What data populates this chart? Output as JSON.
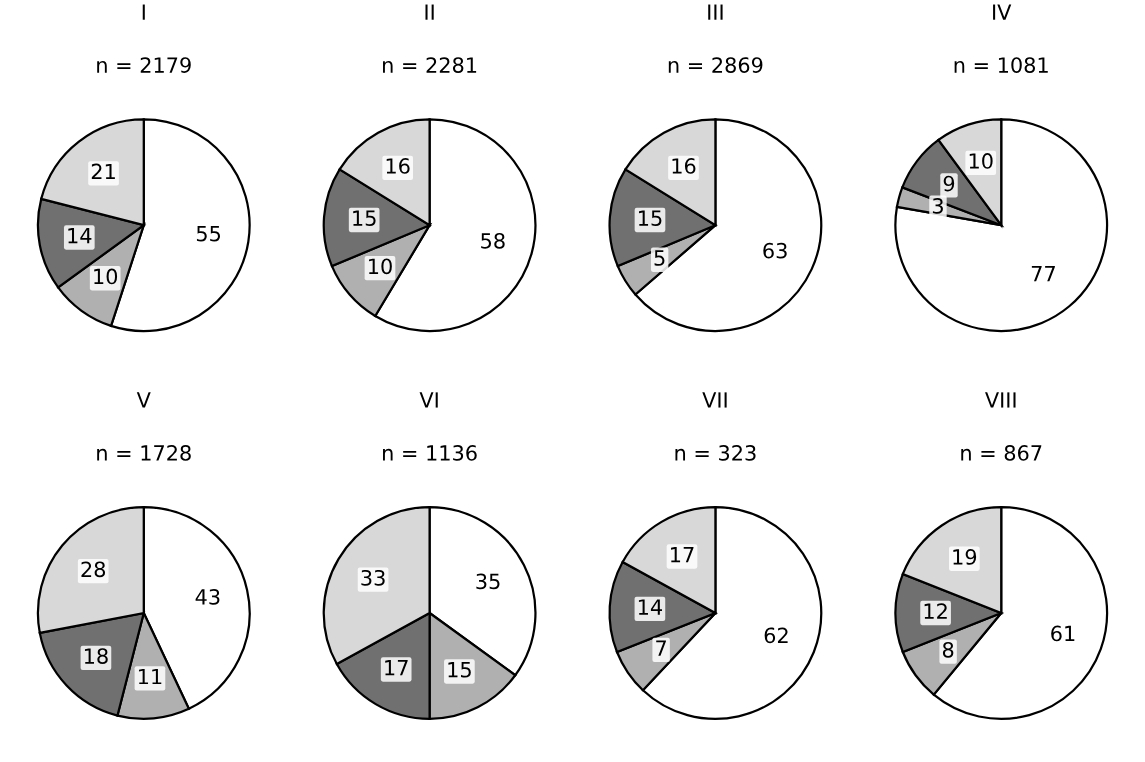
{
  "chart_data": [
    {
      "type": "pie",
      "title": "I",
      "subtitle": "n = 2179",
      "categories": [
        null,
        null,
        null,
        null
      ],
      "values": [
        55,
        10,
        14,
        21
      ],
      "colors": [
        "#ffffff",
        "#b0b0b0",
        "#707070",
        "#d8d8d8"
      ],
      "data_labels": true
    },
    {
      "type": "pie",
      "title": "II",
      "subtitle": "n = 2281",
      "categories": [
        null,
        null,
        null,
        null
      ],
      "values": [
        58,
        10,
        15,
        16
      ],
      "colors": [
        "#ffffff",
        "#b0b0b0",
        "#707070",
        "#d8d8d8"
      ],
      "data_labels": true
    },
    {
      "type": "pie",
      "title": "III",
      "subtitle": "n = 2869",
      "categories": [
        null,
        null,
        null,
        null
      ],
      "values": [
        63,
        5,
        15,
        16
      ],
      "colors": [
        "#ffffff",
        "#b0b0b0",
        "#707070",
        "#d8d8d8"
      ],
      "data_labels": true
    },
    {
      "type": "pie",
      "title": "IV",
      "subtitle": "n = 1081",
      "categories": [
        null,
        null,
        null,
        null
      ],
      "values": [
        77,
        3,
        9,
        10
      ],
      "colors": [
        "#ffffff",
        "#b0b0b0",
        "#707070",
        "#d8d8d8"
      ],
      "data_labels": true
    },
    {
      "type": "pie",
      "title": "V",
      "subtitle": "n = 1728",
      "categories": [
        null,
        null,
        null,
        null
      ],
      "values": [
        43,
        11,
        18,
        28
      ],
      "colors": [
        "#ffffff",
        "#b0b0b0",
        "#707070",
        "#d8d8d8"
      ],
      "data_labels": true
    },
    {
      "type": "pie",
      "title": "VI",
      "subtitle": "n = 1136",
      "categories": [
        null,
        null,
        null,
        null
      ],
      "values": [
        35,
        15,
        17,
        33
      ],
      "colors": [
        "#ffffff",
        "#b0b0b0",
        "#707070",
        "#d8d8d8"
      ],
      "data_labels": true
    },
    {
      "type": "pie",
      "title": "VII",
      "subtitle": "n = 323",
      "categories": [
        null,
        null,
        null,
        null
      ],
      "values": [
        62,
        7,
        14,
        17
      ],
      "colors": [
        "#ffffff",
        "#b0b0b0",
        "#707070",
        "#d8d8d8"
      ],
      "data_labels": true
    },
    {
      "type": "pie",
      "title": "VIII",
      "subtitle": "n = 867",
      "categories": [
        null,
        null,
        null,
        null
      ],
      "values": [
        61,
        8,
        12,
        19
      ],
      "colors": [
        "#ffffff",
        "#b0b0b0",
        "#707070",
        "#d8d8d8"
      ],
      "data_labels": true
    }
  ]
}
